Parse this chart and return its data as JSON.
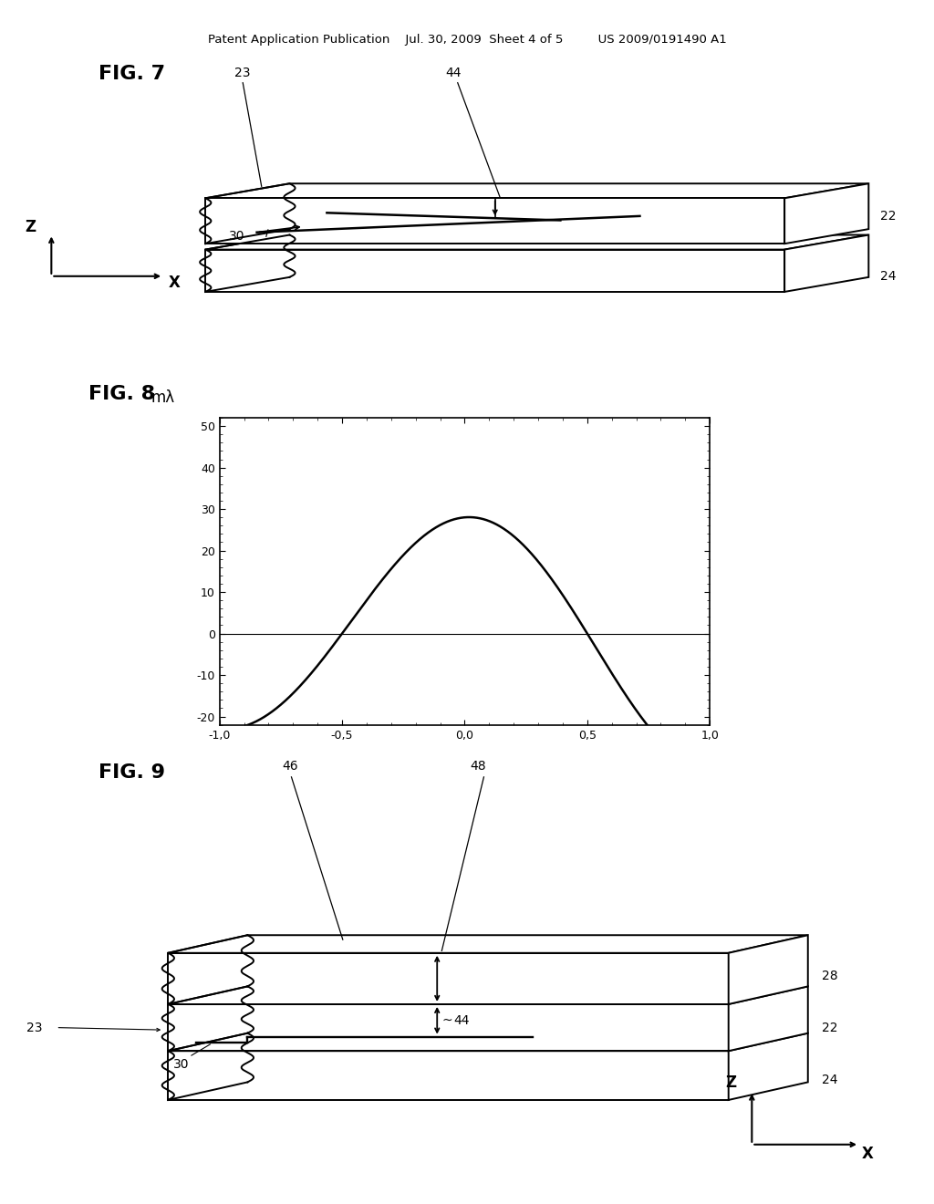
{
  "title_text": "Patent Application Publication    Jul. 30, 2009  Sheet 4 of 5         US 2009/0191490 A1",
  "fig7_label": "FIG. 7",
  "fig8_label": "FIG. 8",
  "fig9_label": "FIG. 9",
  "background_color": "#ffffff",
  "line_color": "#000000",
  "fig8_ylabel": "mλ",
  "fig8_yticks": [
    -20,
    -10,
    0,
    10,
    20,
    30,
    40,
    50
  ],
  "fig8_xticks": [
    -1.0,
    -0.5,
    0.0,
    0.5,
    1.0
  ],
  "fig8_xtick_labels": [
    "-1,0",
    "-0,5",
    "0,0",
    "0,5",
    "1,0"
  ],
  "fig8_xlim": [
    -1.0,
    1.0
  ],
  "fig8_ylim": [
    -22,
    52
  ]
}
